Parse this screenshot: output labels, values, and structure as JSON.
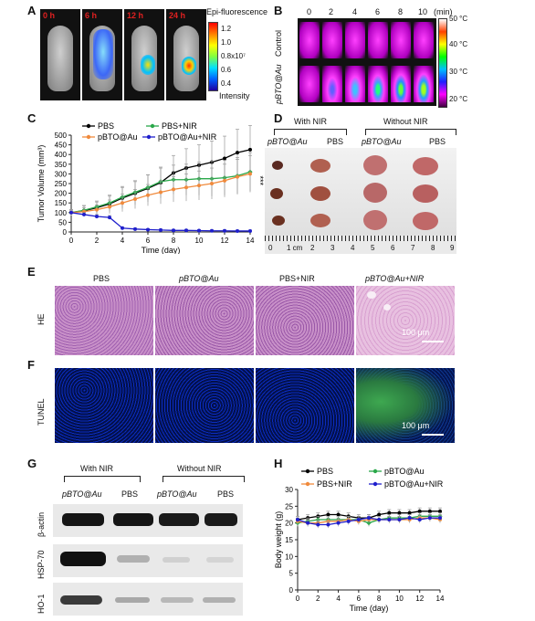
{
  "panels": {
    "a": "A",
    "b": "B",
    "c": "C",
    "d": "D",
    "e": "E",
    "f": "F",
    "g": "G",
    "h": "H"
  },
  "panel_a": {
    "times": [
      "0 h",
      "6 h",
      "12 h",
      "24 h"
    ],
    "colorbar_title": "Epi-fluorescence",
    "colorbar_ticks": [
      "1.2",
      "1.0",
      "0.8x10⁷",
      "0.6",
      "0.4"
    ],
    "colorbar_label": "Intensity",
    "colors": {
      "high": "#ff2a00",
      "mid": "#ffff00",
      "low": "#0020ff"
    }
  },
  "panel_b": {
    "time_labels": [
      "0",
      "2",
      "4",
      "6",
      "8",
      "10"
    ],
    "time_unit": "(min)",
    "rows": [
      "Control",
      "pBTO@Au"
    ],
    "scale_ticks": [
      "50 °C",
      "40 °C",
      "30 °C",
      "20 °C"
    ]
  },
  "panel_d": {
    "group_with": "With NIR",
    "group_without": "Without NIR",
    "col_labels": [
      "pBTO@Au",
      "PBS",
      "pBTO@Au",
      "PBS"
    ],
    "ruler_labels": [
      "0",
      "1 cm",
      "2",
      "3",
      "4",
      "5",
      "6",
      "7",
      "8",
      "9"
    ]
  },
  "panel_e": {
    "row_label": "HE",
    "col_labels": [
      "PBS",
      "pBTO@Au",
      "PBS+NIR",
      "pBTO@Au+NIR"
    ],
    "scale": "100 μm"
  },
  "panel_f": {
    "row_label": "TUNEL",
    "scale": "100 μm"
  },
  "panel_g": {
    "group_with": "With NIR",
    "group_without": "Without NIR",
    "col_labels": [
      "pBTO@Au",
      "PBS",
      "pBTO@Au",
      "PBS"
    ],
    "rows": [
      "β-actin",
      "HSP-70",
      "HO-1"
    ]
  },
  "chart_data": [
    {
      "type": "line",
      "panel": "C",
      "ylabel": "Tumor Volume (mm³)",
      "xlabel": "Time (day)",
      "xlim": [
        0,
        14
      ],
      "ylim": [
        0,
        500
      ],
      "xticks": [
        0,
        2,
        4,
        6,
        8,
        10,
        12,
        14
      ],
      "yticks": [
        0,
        50,
        100,
        150,
        200,
        250,
        300,
        350,
        400,
        450,
        500
      ],
      "annotation": "***",
      "legend": "top",
      "series": [
        {
          "name": "PBS",
          "color": "#000000",
          "x": [
            0,
            1,
            2,
            3,
            4,
            5,
            6,
            7,
            8,
            9,
            10,
            11,
            12,
            13,
            14
          ],
          "y": [
            100,
            110,
            125,
            145,
            175,
            200,
            225,
            255,
            305,
            330,
            345,
            360,
            380,
            410,
            425
          ],
          "err": [
            15,
            25,
            30,
            40,
            55,
            60,
            70,
            80,
            90,
            100,
            105,
            110,
            115,
            120,
            125
          ]
        },
        {
          "name": "PBS+NIR",
          "color": "#2aa84a",
          "x": [
            0,
            1,
            2,
            3,
            4,
            5,
            6,
            7,
            8,
            9,
            10,
            11,
            12,
            13,
            14
          ],
          "y": [
            100,
            112,
            130,
            150,
            180,
            205,
            230,
            260,
            270,
            270,
            275,
            275,
            280,
            290,
            310
          ],
          "err": [
            15,
            25,
            30,
            40,
            55,
            60,
            65,
            70,
            75,
            80,
            85,
            90,
            90,
            95,
            100
          ]
        },
        {
          "name": "pBTO@Au",
          "color": "#f08a3c",
          "x": [
            0,
            1,
            2,
            3,
            4,
            5,
            6,
            7,
            8,
            9,
            10,
            11,
            12,
            13,
            14
          ],
          "y": [
            100,
            105,
            115,
            130,
            150,
            170,
            190,
            205,
            220,
            230,
            240,
            250,
            265,
            285,
            300
          ],
          "err": [
            15,
            20,
            25,
            35,
            45,
            50,
            55,
            60,
            65,
            70,
            75,
            80,
            85,
            90,
            95
          ]
        },
        {
          "name": "pBTO@Au+NIR",
          "color": "#1f1fcc",
          "x": [
            0,
            1,
            2,
            3,
            4,
            5,
            6,
            7,
            8,
            9,
            10,
            11,
            12,
            13,
            14
          ],
          "y": [
            100,
            90,
            80,
            75,
            20,
            15,
            12,
            10,
            8,
            8,
            7,
            6,
            6,
            5,
            5
          ],
          "err": [
            10,
            10,
            10,
            10,
            5,
            5,
            5,
            5,
            5,
            5,
            5,
            5,
            5,
            5,
            5
          ]
        }
      ]
    },
    {
      "type": "line",
      "panel": "H",
      "ylabel": "Body weight (g)",
      "xlabel": "Time (day)",
      "xlim": [
        0,
        14
      ],
      "ylim": [
        0,
        30
      ],
      "xticks": [
        0,
        2,
        4,
        6,
        8,
        10,
        12,
        14
      ],
      "yticks": [
        0,
        5,
        10,
        15,
        20,
        25,
        30
      ],
      "legend": "top",
      "series": [
        {
          "name": "PBS",
          "color": "#000000",
          "x": [
            0,
            1,
            2,
            3,
            4,
            5,
            6,
            7,
            8,
            9,
            10,
            11,
            12,
            13,
            14
          ],
          "y": [
            21,
            21.5,
            22,
            22.5,
            22.5,
            22,
            21.5,
            21.5,
            22.5,
            23,
            23,
            23,
            23.5,
            23.5,
            23.5
          ],
          "err": [
            1,
            1,
            1,
            1,
            1,
            1,
            1,
            1,
            1,
            1,
            1,
            1,
            1,
            1,
            1
          ]
        },
        {
          "name": "pBTO@Au",
          "color": "#2aa84a",
          "x": [
            0,
            1,
            2,
            3,
            4,
            5,
            6,
            7,
            8,
            9,
            10,
            11,
            12,
            13,
            14
          ],
          "y": [
            20,
            20.5,
            21,
            21,
            21,
            21,
            21,
            20,
            21,
            21.5,
            21.5,
            21.5,
            22,
            22,
            22
          ],
          "err": [
            1,
            1,
            1,
            1,
            1,
            1,
            1,
            1,
            1,
            1,
            1,
            1,
            1,
            1,
            1
          ]
        },
        {
          "name": "PBS+NIR",
          "color": "#f08a3c",
          "x": [
            0,
            1,
            2,
            3,
            4,
            5,
            6,
            7,
            8,
            9,
            10,
            11,
            12,
            13,
            14
          ],
          "y": [
            20.5,
            20,
            20,
            20.5,
            20.5,
            21,
            20.5,
            21,
            21,
            21,
            21,
            21,
            21.5,
            21.5,
            21
          ],
          "err": [
            1,
            1,
            1,
            1,
            1,
            1,
            1,
            1,
            1,
            1,
            1,
            1,
            1,
            1,
            1
          ]
        },
        {
          "name": "pBTO@Au+NIR",
          "color": "#1f1fcc",
          "x": [
            0,
            1,
            2,
            3,
            4,
            5,
            6,
            7,
            8,
            9,
            10,
            11,
            12,
            13,
            14
          ],
          "y": [
            21,
            20,
            19.5,
            19.5,
            20,
            20.5,
            21,
            21.5,
            21,
            21,
            21,
            21.5,
            21,
            21.5,
            21.5
          ],
          "err": [
            1,
            1,
            1,
            1,
            1,
            1,
            1,
            1,
            1,
            1,
            1,
            1,
            1,
            1,
            1
          ]
        }
      ]
    }
  ]
}
